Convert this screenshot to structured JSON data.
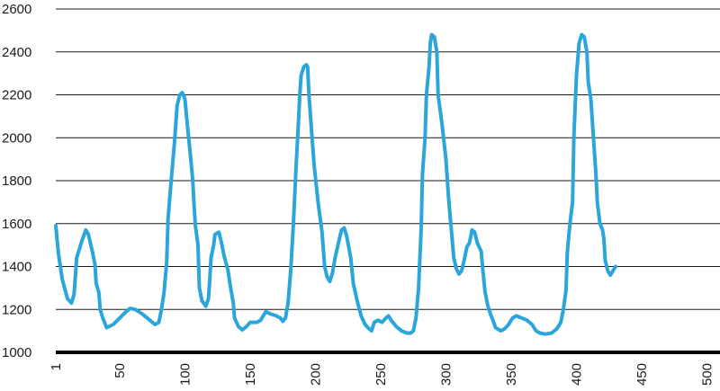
{
  "chart_data": {
    "type": "line",
    "title": "",
    "xlabel": "",
    "ylabel": "",
    "xlim": [
      1,
      510
    ],
    "ylim": [
      1000,
      2600
    ],
    "y_ticks": [
      "1000",
      "1200",
      "1400",
      "1600",
      "1800",
      "2000",
      "2200",
      "2400",
      "2600"
    ],
    "x_ticks": [
      {
        "value": 1,
        "label": "1"
      },
      {
        "value": 50,
        "label": "50"
      },
      {
        "value": 100,
        "label": "100"
      },
      {
        "value": 150,
        "label": "150"
      },
      {
        "value": 200,
        "label": "200"
      },
      {
        "value": 250,
        "label": "250"
      },
      {
        "value": 300,
        "label": "300"
      },
      {
        "value": 350,
        "label": "350"
      },
      {
        "value": 400,
        "label": "400"
      },
      {
        "value": 450,
        "label": "450"
      },
      {
        "value": 500,
        "label": "500"
      }
    ],
    "grid": true,
    "legend": "none",
    "series": [
      {
        "color": "#2aa6dc",
        "points": [
          [
            1,
            1590
          ],
          [
            3,
            1460
          ],
          [
            6,
            1340
          ],
          [
            10,
            1250
          ],
          [
            13,
            1230
          ],
          [
            15,
            1270
          ],
          [
            17,
            1440
          ],
          [
            21,
            1520
          ],
          [
            24,
            1570
          ],
          [
            26,
            1550
          ],
          [
            29,
            1470
          ],
          [
            31,
            1410
          ],
          [
            32,
            1320
          ],
          [
            34,
            1280
          ],
          [
            35,
            1200
          ],
          [
            37,
            1160
          ],
          [
            40,
            1115
          ],
          [
            45,
            1130
          ],
          [
            50,
            1160
          ],
          [
            55,
            1190
          ],
          [
            58,
            1205
          ],
          [
            62,
            1200
          ],
          [
            67,
            1180
          ],
          [
            73,
            1150
          ],
          [
            77,
            1130
          ],
          [
            80,
            1140
          ],
          [
            82,
            1200
          ],
          [
            84,
            1280
          ],
          [
            86,
            1420
          ],
          [
            87,
            1620
          ],
          [
            89,
            1770
          ],
          [
            92,
            1980
          ],
          [
            94,
            2150
          ],
          [
            96,
            2200
          ],
          [
            98,
            2210
          ],
          [
            100,
            2180
          ],
          [
            102,
            2050
          ],
          [
            104,
            1930
          ],
          [
            106,
            1800
          ],
          [
            107,
            1680
          ],
          [
            108,
            1590
          ],
          [
            110,
            1500
          ],
          [
            111,
            1300
          ],
          [
            113,
            1240
          ],
          [
            116,
            1215
          ],
          [
            118,
            1250
          ],
          [
            119,
            1340
          ],
          [
            120,
            1440
          ],
          [
            122,
            1500
          ],
          [
            123,
            1550
          ],
          [
            126,
            1560
          ],
          [
            128,
            1510
          ],
          [
            130,
            1450
          ],
          [
            133,
            1380
          ],
          [
            135,
            1300
          ],
          [
            137,
            1230
          ],
          [
            138,
            1160
          ],
          [
            141,
            1120
          ],
          [
            144,
            1105
          ],
          [
            147,
            1120
          ],
          [
            150,
            1140
          ],
          [
            155,
            1140
          ],
          [
            158,
            1150
          ],
          [
            162,
            1190
          ],
          [
            165,
            1180
          ],
          [
            170,
            1170
          ],
          [
            173,
            1160
          ],
          [
            175,
            1145
          ],
          [
            177,
            1160
          ],
          [
            179,
            1230
          ],
          [
            181,
            1380
          ],
          [
            183,
            1590
          ],
          [
            185,
            1850
          ],
          [
            187,
            2080
          ],
          [
            188,
            2200
          ],
          [
            189,
            2290
          ],
          [
            191,
            2330
          ],
          [
            193,
            2340
          ],
          [
            194,
            2330
          ],
          [
            195,
            2200
          ],
          [
            197,
            2030
          ],
          [
            199,
            1870
          ],
          [
            202,
            1700
          ],
          [
            205,
            1560
          ],
          [
            207,
            1400
          ],
          [
            209,
            1350
          ],
          [
            211,
            1330
          ],
          [
            213,
            1370
          ],
          [
            215,
            1440
          ],
          [
            218,
            1520
          ],
          [
            220,
            1570
          ],
          [
            222,
            1580
          ],
          [
            224,
            1540
          ],
          [
            227,
            1440
          ],
          [
            229,
            1320
          ],
          [
            232,
            1240
          ],
          [
            235,
            1170
          ],
          [
            238,
            1130
          ],
          [
            241,
            1110
          ],
          [
            243,
            1100
          ],
          [
            245,
            1140
          ],
          [
            248,
            1150
          ],
          [
            251,
            1140
          ],
          [
            254,
            1160
          ],
          [
            256,
            1170
          ],
          [
            258,
            1150
          ],
          [
            262,
            1120
          ],
          [
            266,
            1100
          ],
          [
            270,
            1090
          ],
          [
            273,
            1090
          ],
          [
            275,
            1100
          ],
          [
            277,
            1160
          ],
          [
            279,
            1300
          ],
          [
            281,
            1580
          ],
          [
            282,
            1830
          ],
          [
            284,
            2000
          ],
          [
            285,
            2200
          ],
          [
            287,
            2330
          ],
          [
            288,
            2440
          ],
          [
            289,
            2480
          ],
          [
            291,
            2470
          ],
          [
            293,
            2400
          ],
          [
            294,
            2200
          ],
          [
            297,
            2060
          ],
          [
            300,
            1900
          ],
          [
            302,
            1720
          ],
          [
            304,
            1580
          ],
          [
            306,
            1440
          ],
          [
            308,
            1390
          ],
          [
            310,
            1365
          ],
          [
            312,
            1380
          ],
          [
            314,
            1430
          ],
          [
            316,
            1490
          ],
          [
            318,
            1510
          ],
          [
            320,
            1570
          ],
          [
            322,
            1560
          ],
          [
            324,
            1510
          ],
          [
            327,
            1470
          ],
          [
            328,
            1400
          ],
          [
            330,
            1280
          ],
          [
            332,
            1220
          ],
          [
            334,
            1180
          ],
          [
            336,
            1150
          ],
          [
            338,
            1115
          ],
          [
            342,
            1100
          ],
          [
            345,
            1110
          ],
          [
            348,
            1130
          ],
          [
            351,
            1160
          ],
          [
            354,
            1170
          ],
          [
            358,
            1160
          ],
          [
            362,
            1150
          ],
          [
            366,
            1130
          ],
          [
            369,
            1100
          ],
          [
            372,
            1090
          ],
          [
            376,
            1085
          ],
          [
            381,
            1090
          ],
          [
            385,
            1110
          ],
          [
            388,
            1140
          ],
          [
            390,
            1200
          ],
          [
            392,
            1290
          ],
          [
            393,
            1470
          ],
          [
            395,
            1600
          ],
          [
            397,
            1700
          ],
          [
            398,
            2000
          ],
          [
            399,
            2150
          ],
          [
            400,
            2290
          ],
          [
            402,
            2440
          ],
          [
            404,
            2480
          ],
          [
            406,
            2470
          ],
          [
            408,
            2400
          ],
          [
            409,
            2260
          ],
          [
            411,
            2180
          ],
          [
            413,
            2000
          ],
          [
            415,
            1820
          ],
          [
            416,
            1700
          ],
          [
            418,
            1600
          ],
          [
            420,
            1570
          ],
          [
            421,
            1530
          ],
          [
            422,
            1430
          ],
          [
            424,
            1380
          ],
          [
            426,
            1360
          ],
          [
            428,
            1380
          ],
          [
            430,
            1400
          ]
        ]
      }
    ]
  }
}
